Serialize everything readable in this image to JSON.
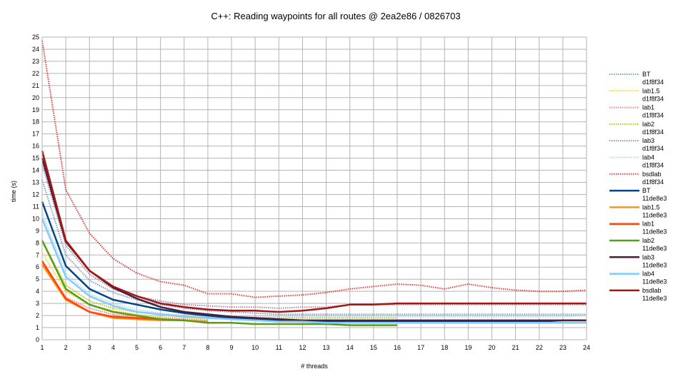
{
  "chart_data": {
    "type": "line",
    "title": "C++: Reading waypoints for all routes @ 2ea2e86 / 0826703",
    "xlabel": "# threads",
    "ylabel": "time (s)",
    "xlim": [
      1,
      24
    ],
    "ylim": [
      0,
      25
    ],
    "xticks": [
      1,
      2,
      3,
      4,
      5,
      6,
      7,
      8,
      9,
      10,
      11,
      12,
      13,
      14,
      15,
      16,
      17,
      18,
      19,
      20,
      21,
      22,
      23,
      24
    ],
    "yticks": [
      0,
      1,
      2,
      3,
      4,
      5,
      6,
      7,
      8,
      9,
      10,
      11,
      12,
      13,
      14,
      15,
      16,
      17,
      18,
      19,
      20,
      21,
      22,
      23,
      24,
      25
    ],
    "grid": true,
    "legend_position": "right",
    "series": [
      {
        "name": "BT",
        "sub": "d1f8f34",
        "color": "#729fcf",
        "style": "dotted",
        "x": [
          1,
          2,
          3,
          4,
          5,
          6,
          7,
          8,
          9,
          10,
          11,
          12,
          13,
          14,
          15,
          16,
          17,
          18,
          19,
          20,
          21,
          22,
          23,
          24
        ],
        "values": [
          13.2,
          7.0,
          4.9,
          3.9,
          3.3,
          2.9,
          2.6,
          2.4,
          2.3,
          2.2,
          2.1,
          2.1,
          2.1,
          2.1,
          2.1,
          2.1,
          2.1,
          2.1,
          2.1,
          2.1,
          2.1,
          2.1,
          2.1,
          2.1
        ]
      },
      {
        "name": "lab1.5",
        "sub": "d1f8f34",
        "color": "#ffd320",
        "style": "dotted",
        "x": [
          1,
          2,
          3,
          4,
          5,
          6,
          7,
          8
        ],
        "values": [
          7.2,
          4.0,
          2.9,
          2.4,
          2.1,
          1.9,
          1.8,
          1.7
        ]
      },
      {
        "name": "lab1",
        "sub": "d1f8f34",
        "color": "#ff8080",
        "style": "dotted",
        "x": [
          1,
          2,
          3,
          4,
          5,
          6,
          7,
          8
        ],
        "values": [
          6.2,
          3.5,
          2.6,
          2.1,
          1.9,
          1.8,
          1.7,
          1.6
        ]
      },
      {
        "name": "lab2",
        "sub": "d1f8f34",
        "color": "#aecf00",
        "style": "dotted",
        "x": [
          1,
          2,
          3,
          4,
          5,
          6,
          7,
          8,
          9,
          10,
          11,
          12,
          13,
          14,
          15,
          16
        ],
        "values": [
          8.2,
          4.5,
          3.2,
          2.6,
          2.3,
          2.1,
          2.0,
          1.9,
          1.9,
          1.8,
          1.8,
          1.8,
          1.8,
          1.8,
          1.8,
          1.8
        ]
      },
      {
        "name": "lab3",
        "sub": "d1f8f34",
        "color": "#a8869e",
        "style": "dotted",
        "x": [
          1,
          2,
          3,
          4,
          5,
          6,
          7,
          8,
          9,
          10,
          11,
          12,
          13,
          14,
          15,
          16,
          17,
          18,
          19,
          20,
          21,
          22,
          23,
          24
        ],
        "values": [
          14.5,
          7.8,
          5.4,
          4.2,
          3.6,
          3.2,
          2.9,
          2.8,
          2.7,
          2.7,
          2.6,
          2.7,
          2.7,
          2.9,
          2.9,
          2.9,
          2.9,
          2.9,
          2.9,
          2.9,
          2.9,
          2.9,
          2.9,
          2.9
        ]
      },
      {
        "name": "lab4",
        "sub": "d1f8f34",
        "color": "#b4d7ef",
        "style": "dotted",
        "x": [
          1,
          2,
          3,
          4,
          5,
          6,
          7,
          8,
          9,
          10,
          11,
          12,
          13,
          14,
          15,
          16,
          17,
          18,
          19,
          20,
          21,
          22,
          23,
          24
        ],
        "values": [
          10.5,
          5.5,
          3.8,
          3.0,
          2.5,
          2.2,
          2.0,
          1.9,
          1.9,
          1.9,
          1.9,
          1.9,
          1.9,
          1.9,
          1.9,
          1.9,
          1.9,
          1.9,
          1.9,
          1.9,
          1.9,
          1.9,
          1.9,
          2.0
        ]
      },
      {
        "name": "bsdlab",
        "sub": "d1f8f34",
        "color": "#e0403c",
        "style": "dotted",
        "x": [
          1,
          2,
          3,
          4,
          5,
          6,
          7,
          8,
          9,
          10,
          11,
          12,
          13,
          14,
          15,
          16,
          17,
          18,
          19,
          20,
          21,
          22,
          23,
          24
        ],
        "values": [
          24.7,
          12.4,
          8.8,
          6.7,
          5.5,
          4.8,
          4.5,
          3.8,
          3.8,
          3.5,
          3.6,
          3.7,
          3.9,
          4.2,
          4.4,
          4.6,
          4.5,
          4.2,
          4.6,
          4.3,
          4.1,
          4.0,
          4.0,
          4.1
        ]
      },
      {
        "name": "BT",
        "sub": "11de8e3",
        "color": "#004586",
        "style": "solid",
        "x": [
          1,
          2,
          3,
          4,
          5,
          6,
          7,
          8,
          9,
          10,
          11,
          12,
          13,
          14,
          15,
          16,
          17,
          18,
          19,
          20,
          21,
          22,
          23,
          24
        ],
        "values": [
          11.4,
          6.1,
          4.2,
          3.3,
          2.9,
          2.5,
          2.2,
          2.0,
          1.8,
          1.7,
          1.6,
          1.5,
          1.5,
          1.5,
          1.5,
          1.5,
          1.5,
          1.5,
          1.5,
          1.5,
          1.5,
          1.5,
          1.6,
          1.6
        ]
      },
      {
        "name": "lab1.5",
        "sub": "11de8e3",
        "color": "#ff950e",
        "style": "solid",
        "x": [
          1,
          2,
          3,
          4,
          5,
          6,
          7,
          8
        ],
        "values": [
          6.2,
          3.3,
          2.3,
          1.8,
          1.7,
          1.6,
          1.6,
          1.5
        ]
      },
      {
        "name": "lab1",
        "sub": "11de8e3",
        "color": "#ff420e",
        "style": "solid",
        "x": [
          1,
          2,
          3,
          4,
          5,
          6,
          7
        ],
        "values": [
          6.5,
          3.4,
          2.3,
          1.9,
          1.8,
          1.7,
          1.6
        ]
      },
      {
        "name": "lab2",
        "sub": "11de8e3",
        "color": "#579d1c",
        "style": "solid",
        "x": [
          1,
          2,
          3,
          4,
          5,
          6,
          7,
          8,
          9,
          10,
          11,
          12,
          13,
          14,
          15,
          16
        ],
        "values": [
          8.2,
          4.2,
          2.9,
          2.3,
          2.0,
          1.7,
          1.6,
          1.4,
          1.4,
          1.3,
          1.3,
          1.3,
          1.3,
          1.2,
          1.2,
          1.2
        ]
      },
      {
        "name": "lab3",
        "sub": "11de8e3",
        "color": "#4b1f3a",
        "style": "solid",
        "x": [
          1,
          2,
          3,
          4,
          5,
          6,
          7,
          8,
          9,
          10,
          11,
          12,
          13,
          14,
          15,
          16,
          17,
          18,
          19,
          20,
          21,
          22,
          23,
          24
        ],
        "values": [
          15.0,
          8.1,
          5.7,
          4.3,
          3.4,
          2.7,
          2.3,
          2.1,
          1.9,
          1.8,
          1.7,
          1.6,
          1.6,
          1.6,
          1.6,
          1.6,
          1.6,
          1.6,
          1.6,
          1.6,
          1.6,
          1.6,
          1.6,
          1.6
        ]
      },
      {
        "name": "lab4",
        "sub": "11de8e3",
        "color": "#83caff",
        "style": "solid",
        "x": [
          1,
          2,
          3,
          4,
          5,
          6,
          7,
          8,
          9,
          10,
          11,
          12,
          13,
          14,
          15,
          16,
          17,
          18,
          19,
          20,
          21,
          22,
          23,
          24
        ],
        "values": [
          10.0,
          5.2,
          3.6,
          2.8,
          2.3,
          2.1,
          1.9,
          1.8,
          1.7,
          1.6,
          1.5,
          1.5,
          1.4,
          1.4,
          1.4,
          1.4,
          1.4,
          1.4,
          1.4,
          1.4,
          1.4,
          1.4,
          1.4,
          1.4
        ]
      },
      {
        "name": "bsdlab",
        "sub": "11de8e3",
        "color": "#a61515",
        "style": "solid",
        "x": [
          1,
          2,
          3,
          4,
          5,
          6,
          7,
          8,
          9,
          10,
          11,
          12,
          13,
          14,
          15,
          16,
          17,
          18,
          19,
          20,
          21,
          22,
          23,
          24
        ],
        "values": [
          15.6,
          8.2,
          5.7,
          4.4,
          3.6,
          3.0,
          2.7,
          2.5,
          2.4,
          2.4,
          2.3,
          2.4,
          2.6,
          2.9,
          2.9,
          3.0,
          3.0,
          3.0,
          3.0,
          3.0,
          3.0,
          3.0,
          3.0,
          3.0
        ]
      }
    ]
  }
}
